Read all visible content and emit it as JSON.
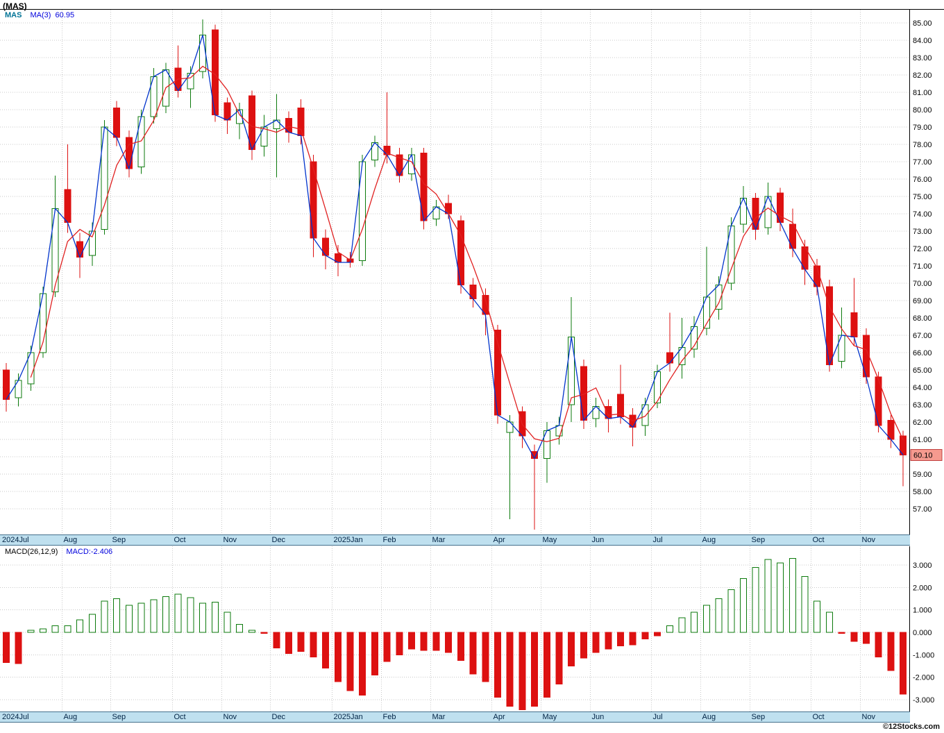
{
  "header": {
    "title": "(MAS)"
  },
  "price_chart": {
    "legend": {
      "symbol": "MAS",
      "ma_label": "MA(3)",
      "ma_value": "60.95"
    },
    "last_price_label": "60.10"
  },
  "macd_chart": {
    "params_label": "MACD(26,12,9)",
    "value_label": "MACD:-2.406"
  },
  "x_axis": {
    "labels": [
      "2024Jul",
      "Aug",
      "Sep",
      "Oct",
      "Nov",
      "Dec",
      "2025Jan",
      "Feb",
      "Mar",
      "Apr",
      "May",
      "Jun",
      "Jul",
      "Aug",
      "Sep",
      "Oct",
      "Nov"
    ]
  },
  "footer": {
    "copyright": "©12Stocks.com"
  },
  "colors": {
    "up": "#0b7a0b",
    "down": "#dd1111",
    "close_line": "#0033cc",
    "ma_line": "#e02020",
    "grid": "#c8c8c8",
    "band_bg": "#bfe0ef",
    "band_text": "#002244",
    "tag_bg": "#f59a8f"
  },
  "chart_data": [
    {
      "type": "candlestick",
      "title": "(MAS)",
      "interval": "weekly",
      "legend": [
        "MAS close (blue)",
        "MA(3) (red)"
      ],
      "ylim": [
        55.6,
        85.6
      ],
      "y_ticks": [
        85,
        84,
        83,
        82,
        81,
        80,
        79,
        78,
        77,
        76,
        75,
        74,
        73,
        72,
        71,
        70,
        69,
        68,
        67,
        66,
        65,
        64,
        63,
        62,
        61,
        60,
        59,
        58,
        57
      ],
      "grid": true,
      "last_close": 60.1,
      "ma3_last": 60.95,
      "weeks_per_month": [
        5,
        4,
        5,
        4,
        4,
        5,
        4,
        4,
        5,
        4,
        4,
        5,
        4,
        4,
        5,
        4,
        4
      ],
      "candle_format": [
        "open",
        "high",
        "low",
        "close"
      ],
      "candles": [
        [
          65.0,
          65.4,
          62.6,
          63.3
        ],
        [
          63.4,
          64.8,
          62.9,
          64.4
        ],
        [
          64.2,
          66.4,
          63.8,
          66.0
        ],
        [
          66.0,
          69.8,
          65.7,
          69.4
        ],
        [
          69.5,
          76.2,
          69.2,
          74.3
        ],
        [
          75.4,
          78.0,
          72.9,
          73.5
        ],
        [
          72.4,
          72.9,
          70.3,
          71.5
        ],
        [
          71.6,
          73.5,
          71.0,
          73.0
        ],
        [
          73.1,
          79.4,
          72.8,
          79.0
        ],
        [
          80.1,
          80.5,
          77.9,
          78.4
        ],
        [
          78.4,
          78.8,
          76.1,
          76.6
        ],
        [
          76.7,
          80.0,
          76.3,
          79.6
        ],
        [
          79.6,
          82.4,
          79.2,
          81.9
        ],
        [
          80.2,
          82.7,
          79.8,
          82.3
        ],
        [
          82.4,
          83.7,
          80.7,
          81.1
        ],
        [
          81.2,
          82.5,
          80.1,
          82.1
        ],
        [
          82.2,
          85.2,
          81.8,
          84.3
        ],
        [
          84.6,
          84.9,
          79.3,
          79.7
        ],
        [
          80.4,
          80.7,
          78.6,
          79.4
        ],
        [
          79.2,
          80.4,
          78.3,
          80.0
        ],
        [
          80.8,
          81.1,
          77.1,
          77.7
        ],
        [
          77.9,
          79.7,
          77.3,
          79.0
        ],
        [
          78.9,
          80.9,
          76.1,
          79.4
        ],
        [
          79.5,
          79.9,
          78.1,
          78.7
        ],
        [
          80.1,
          80.6,
          78.0,
          78.5
        ],
        [
          77.0,
          77.4,
          71.5,
          72.6
        ],
        [
          72.6,
          73.1,
          70.8,
          71.6
        ],
        [
          71.7,
          72.2,
          70.4,
          71.2
        ],
        [
          71.4,
          71.8,
          70.9,
          71.2
        ],
        [
          71.3,
          77.4,
          71.0,
          77.0
        ],
        [
          77.1,
          78.5,
          76.7,
          78.1
        ],
        [
          77.9,
          81.0,
          76.9,
          77.4
        ],
        [
          77.4,
          77.8,
          75.8,
          76.2
        ],
        [
          76.3,
          77.8,
          75.9,
          77.4
        ],
        [
          77.5,
          77.8,
          73.1,
          73.6
        ],
        [
          73.7,
          74.8,
          73.3,
          74.4
        ],
        [
          74.6,
          75.1,
          73.7,
          74.0
        ],
        [
          73.6,
          73.9,
          69.4,
          69.9
        ],
        [
          69.9,
          70.3,
          68.6,
          69.1
        ],
        [
          69.3,
          69.7,
          67.0,
          68.2
        ],
        [
          67.3,
          67.6,
          61.9,
          62.4
        ],
        [
          61.4,
          62.4,
          56.4,
          62.0
        ],
        [
          62.6,
          62.9,
          60.5,
          61.2
        ],
        [
          60.3,
          60.7,
          55.8,
          59.9
        ],
        [
          59.9,
          62.0,
          58.5,
          61.5
        ],
        [
          61.2,
          62.3,
          60.7,
          61.8
        ],
        [
          63.0,
          69.2,
          62.0,
          66.9
        ],
        [
          65.2,
          65.6,
          61.6,
          62.1
        ],
        [
          62.2,
          63.4,
          61.7,
          62.9
        ],
        [
          62.9,
          63.3,
          61.4,
          62.2
        ],
        [
          63.6,
          65.3,
          61.9,
          62.3
        ],
        [
          62.4,
          62.8,
          60.6,
          61.7
        ],
        [
          61.8,
          63.4,
          61.2,
          63.0
        ],
        [
          63.1,
          65.3,
          62.8,
          64.9
        ],
        [
          66.0,
          68.3,
          64.9,
          65.4
        ],
        [
          65.3,
          68.0,
          64.5,
          66.3
        ],
        [
          66.2,
          68.1,
          65.7,
          67.5
        ],
        [
          67.4,
          72.1,
          67.0,
          69.2
        ],
        [
          68.5,
          70.4,
          67.9,
          69.9
        ],
        [
          70.0,
          73.8,
          69.6,
          73.3
        ],
        [
          73.4,
          75.6,
          72.9,
          74.9
        ],
        [
          74.9,
          75.2,
          72.5,
          73.1
        ],
        [
          73.2,
          75.8,
          72.8,
          75.0
        ],
        [
          75.2,
          75.5,
          73.0,
          73.5
        ],
        [
          73.4,
          74.3,
          71.5,
          72.0
        ],
        [
          72.1,
          72.5,
          69.9,
          70.8
        ],
        [
          71.0,
          71.4,
          69.3,
          69.8
        ],
        [
          69.8,
          70.2,
          64.9,
          65.3
        ],
        [
          65.5,
          68.6,
          65.1,
          67.0
        ],
        [
          68.3,
          70.3,
          66.4,
          66.9
        ],
        [
          67.0,
          67.4,
          64.2,
          64.6
        ],
        [
          64.6,
          64.9,
          61.4,
          61.8
        ],
        [
          62.1,
          62.4,
          60.5,
          61.0
        ],
        [
          61.2,
          61.5,
          58.3,
          60.1
        ]
      ]
    },
    {
      "type": "bar",
      "name": "MACD(26,12,9) histogram",
      "last_macd": -2.406,
      "ylim": [
        -3.6,
        3.6
      ],
      "y_ticks": [
        3,
        2,
        1,
        0,
        -1,
        -2,
        -3
      ],
      "values": [
        -1.35,
        -1.4,
        0.1,
        0.15,
        0.3,
        0.3,
        0.55,
        0.8,
        1.4,
        1.5,
        1.2,
        1.3,
        1.45,
        1.6,
        1.7,
        1.55,
        1.3,
        1.35,
        0.9,
        0.35,
        0.1,
        -0.05,
        -0.7,
        -0.95,
        -0.85,
        -1.1,
        -1.6,
        -2.2,
        -2.6,
        -2.8,
        -1.9,
        -1.3,
        -1.0,
        -0.75,
        -0.8,
        -0.8,
        -0.9,
        -1.25,
        -1.85,
        -2.2,
        -2.9,
        -3.3,
        -3.45,
        -3.3,
        -2.9,
        -2.3,
        -1.5,
        -1.15,
        -0.9,
        -0.75,
        -0.6,
        -0.55,
        -0.3,
        -0.15,
        0.3,
        0.65,
        0.9,
        1.2,
        1.5,
        1.9,
        2.4,
        2.9,
        3.25,
        3.1,
        3.3,
        2.5,
        1.4,
        0.9,
        -0.05,
        -0.4,
        -0.5,
        -1.1,
        -1.7,
        -2.75
      ]
    }
  ]
}
